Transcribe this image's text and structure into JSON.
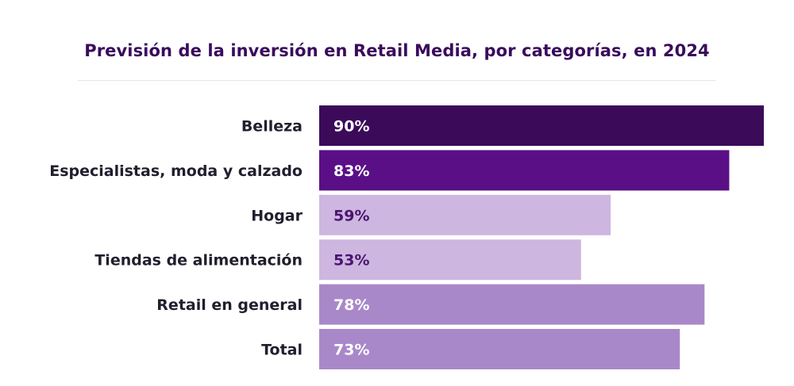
{
  "chart_data": {
    "type": "bar",
    "orientation": "horizontal",
    "title": "Previsión de la inversión en Retail Media, por categorías, en 2024",
    "xlabel": "",
    "ylabel": "",
    "categories": [
      "Belleza",
      "Especialistas, moda y calzado",
      "Hogar",
      "Tiendas de alimentación",
      "Retail en general",
      "Total"
    ],
    "values": [
      90,
      83,
      59,
      53,
      78,
      73
    ],
    "value_labels": [
      "90%",
      "83%",
      "59%",
      "53%",
      "78%",
      "73%"
    ],
    "bar_colors": [
      "#3b0b5a",
      "#5a0f87",
      "#cdb6df",
      "#cdb6df",
      "#a988c9",
      "#a988c9"
    ],
    "label_colors": [
      "#ffffff",
      "#ffffff",
      "#4a1470",
      "#4a1470",
      "#ffffff",
      "#ffffff"
    ],
    "xlim": [
      0,
      100
    ],
    "grid": false,
    "legend": "none"
  }
}
